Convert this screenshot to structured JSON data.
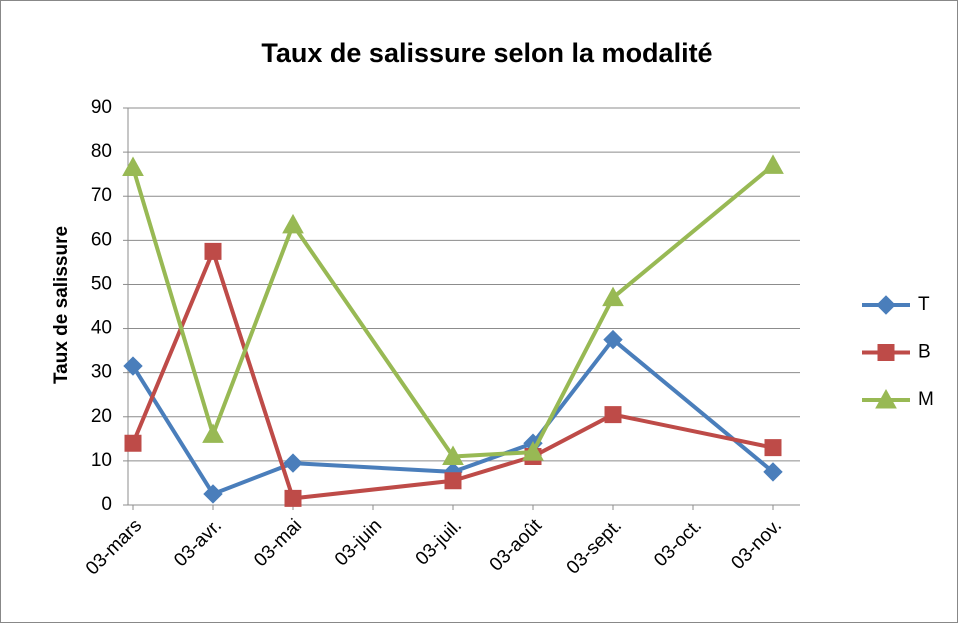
{
  "chart_data": {
    "type": "line",
    "title": "Taux de salissure selon la modalité",
    "y_label": "Taux de salissure",
    "xticks": [
      "03-mars",
      "03-avr.",
      "03-mai",
      "03-juin",
      "03-juil.",
      "03-août",
      "03-sept.",
      "03-oct.",
      "03-nov."
    ],
    "x": [
      "03-mars",
      "03-avr.",
      "03-mai",
      "03-juil.",
      "03-août",
      "03-sept.",
      "03-nov."
    ],
    "series": [
      {
        "name": "T",
        "color": "#4a7ebb",
        "marker": "diamond",
        "values": [
          31.5,
          2.5,
          9.5,
          7.5,
          14,
          37.5,
          7.5
        ]
      },
      {
        "name": "B",
        "color": "#be4b48",
        "marker": "square",
        "values": [
          14,
          57.5,
          1.5,
          5.5,
          11,
          20.5,
          13
        ]
      },
      {
        "name": "M",
        "color": "#98b954",
        "marker": "triangle",
        "values": [
          76.5,
          16,
          63.5,
          11,
          12,
          47,
          77
        ]
      }
    ],
    "ylim": [
      0,
      90
    ],
    "yticks": [
      0,
      10,
      20,
      30,
      40,
      50,
      60,
      70,
      80,
      90
    ],
    "grid": true,
    "legend": "right"
  }
}
